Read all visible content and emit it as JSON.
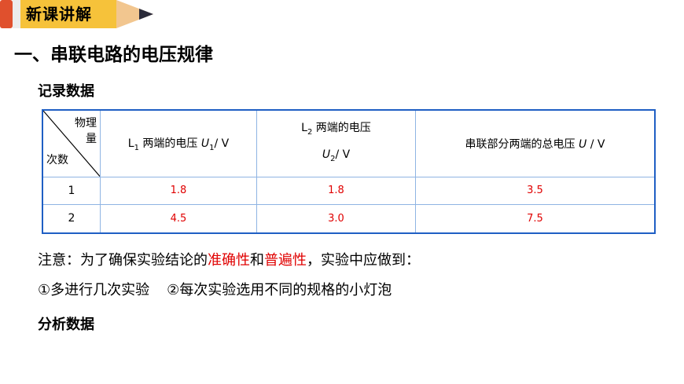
{
  "badge": {
    "label": "新课讲解",
    "colors": {
      "body": "#f6c23a",
      "eraser": "#e0502d",
      "band": "#ececec",
      "tip": "#f2c68f",
      "lead": "#2b2b3a"
    }
  },
  "title": "一、串联电路的电压规律",
  "section1": "记录数据",
  "table": {
    "corner": {
      "top": "物理量",
      "bottom": "次数"
    },
    "headers": [
      {
        "pre": "L",
        "sub": "1",
        "text": " 两端的电压 ",
        "var": "U",
        "varsub": "1",
        "unit": "/ V"
      },
      {
        "pre": "L",
        "sub": "2",
        "text": " 两端的电压",
        "var": "U",
        "varsub": "2",
        "unit": "/ V"
      },
      {
        "text": "串联部分两端的总电压 ",
        "var": "U",
        "unit": " / V"
      }
    ],
    "rows": [
      {
        "n": "1",
        "values": [
          "1.8",
          "1.8",
          "3.5"
        ]
      },
      {
        "n": "2",
        "values": [
          "4.5",
          "3.0",
          "7.5"
        ]
      }
    ]
  },
  "note": {
    "prefix": "注意：为了确保实验结论的",
    "red1": "准确性",
    "mid": "和",
    "red2": "普遍性",
    "suffix": "，实验中应做到："
  },
  "points": [
    "①多进行几次实验",
    "②每次实验选用不同的规格的小灯泡"
  ],
  "section2": "分析数据"
}
